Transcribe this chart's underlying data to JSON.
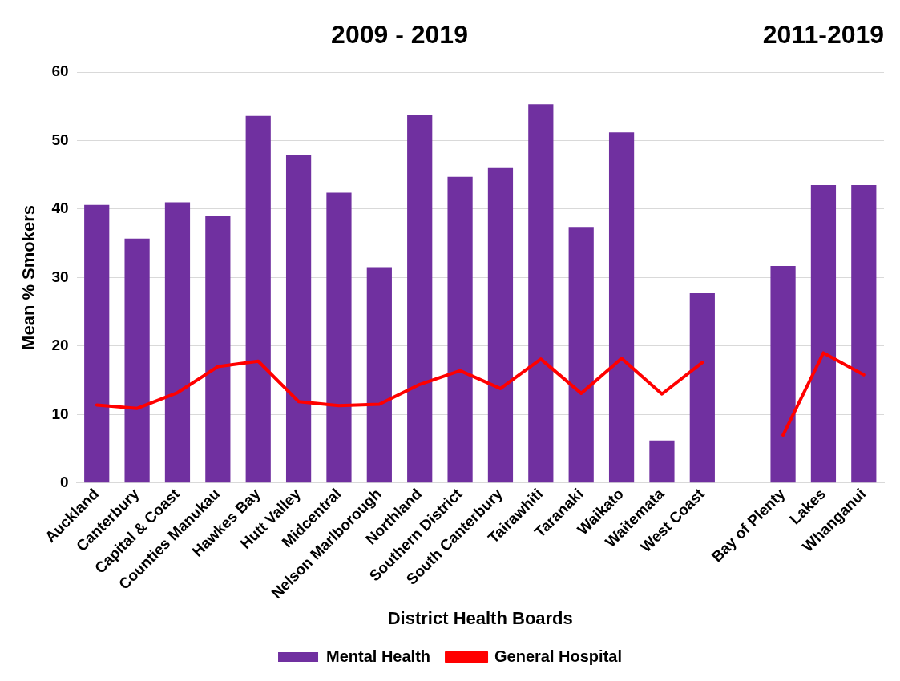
{
  "chart_data": {
    "type": "bar",
    "xlabel": "District Health Boards",
    "ylabel": "Mean % Smokers",
    "annotations": [
      "2009 - 2019",
      "2011-2019"
    ],
    "categories": [
      "Auckland",
      "Canterbury",
      "Capital & Coast",
      "Counties Manukau",
      "Hawkes Bay",
      "Hutt Valley",
      "Midcentral",
      "Nelson Marlborough",
      "Northland",
      "Southern District",
      "South Canterbury",
      "Tairawhiti",
      "Taranaki",
      "Waikato",
      "Waitemata",
      "West Coast",
      null,
      "Bay of Plenty",
      "Lakes",
      "Whanganui"
    ],
    "series": [
      {
        "name": "Mental Health",
        "color": "#7030a0",
        "values": [
          40.6,
          35.7,
          41,
          39,
          53.6,
          47.9,
          42.4,
          31.5,
          53.8,
          44.7,
          46,
          55.3,
          37.4,
          51.2,
          6.2,
          27.7,
          null,
          31.7,
          43.5,
          43.5
        ]
      },
      {
        "name": "General Hospital",
        "type": "line",
        "color": "#ff0000",
        "values": [
          11.4,
          10.9,
          13.2,
          17,
          17.8,
          11.9,
          11.3,
          11.5,
          14.4,
          16.4,
          13.8,
          18.1,
          13.1,
          18.2,
          13,
          17.6,
          null,
          7,
          19,
          15.8
        ]
      }
    ],
    "ylim": [
      0,
      60
    ],
    "yticks": [
      0,
      10,
      20,
      30,
      40,
      50,
      60
    ],
    "grid": "y",
    "legend": "bottom",
    "marker": "none",
    "line_style": "solid"
  }
}
